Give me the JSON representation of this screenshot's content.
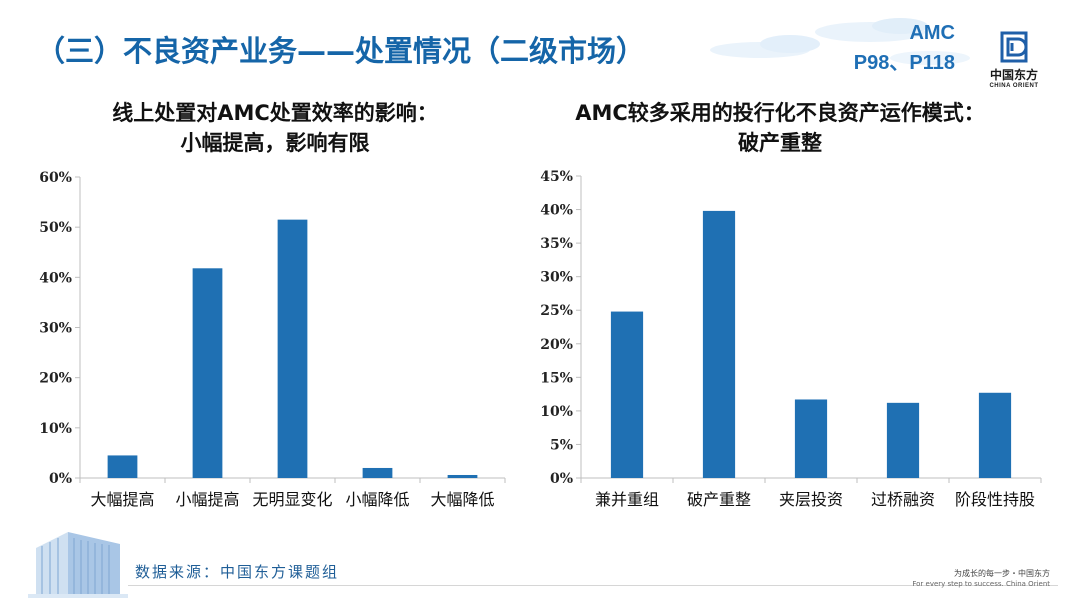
{
  "page": {
    "title": "（三）不良资产业务——处置情况（二级市场）",
    "reference": [
      "AMC",
      "P98、P118"
    ],
    "logo": {
      "cn": "中国东方",
      "en": "CHINA ORIENT"
    },
    "source": "数据来源：中国东方课题组",
    "slogan": {
      "cn": "为成长的每一步・中国东方",
      "en": "For every step to success. China Orient"
    }
  },
  "colors": {
    "bar": "#1f70b3",
    "title": "#1565a8",
    "axis": "#bfbfbf",
    "gridline": "#d9d9d9"
  },
  "chart_data": [
    {
      "type": "bar",
      "title": [
        "线上处置对AMC处置效率的影响：",
        "小幅提高，影响有限"
      ],
      "categories": [
        "大幅提高",
        "小幅提高",
        "无明显变化",
        "小幅降低",
        "大幅降低"
      ],
      "values": [
        4.5,
        41.8,
        51.5,
        2.0,
        0.6
      ],
      "ylim": [
        0,
        60
      ],
      "yticks": [
        0,
        10,
        20,
        30,
        40,
        50,
        60
      ],
      "ytick_labels": [
        "0%",
        "10%",
        "20%",
        "30%",
        "40%",
        "50%",
        "60%"
      ],
      "xlabel": "",
      "ylabel": "",
      "grid": false,
      "legend": "none"
    },
    {
      "type": "bar",
      "title": [
        "AMC较多采用的投行化不良资产运作模式：",
        "破产重整"
      ],
      "categories": [
        "兼并重组",
        "破产重整",
        "夹层投资",
        "过桥融资",
        "阶段性持股"
      ],
      "values": [
        24.8,
        39.8,
        11.7,
        11.2,
        12.7
      ],
      "ylim": [
        0,
        45
      ],
      "yticks": [
        0,
        5,
        10,
        15,
        20,
        25,
        30,
        35,
        40,
        45
      ],
      "ytick_labels": [
        "0%",
        "5%",
        "10%",
        "15%",
        "20%",
        "25%",
        "30%",
        "35%",
        "40%",
        "45%"
      ],
      "xlabel": "",
      "ylabel": "",
      "grid": false,
      "legend": "none"
    }
  ]
}
